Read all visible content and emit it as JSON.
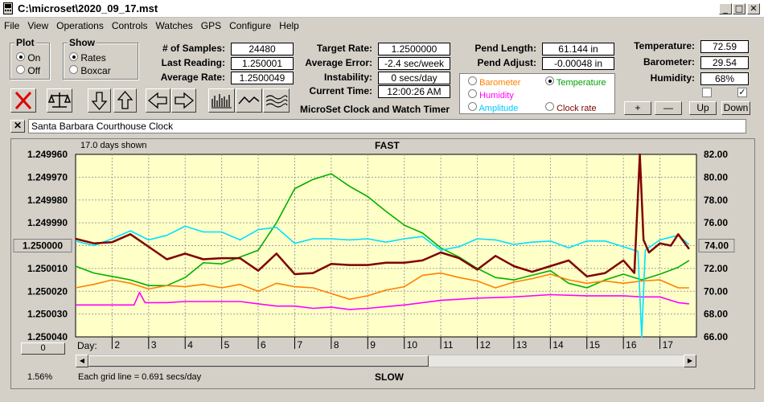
{
  "window": {
    "title": "C:\\microset\\2020_09_17.mst"
  },
  "menu": [
    "File",
    "View",
    "Operations",
    "Controls",
    "Watches",
    "GPS",
    "Configure",
    "Help"
  ],
  "plot_group": {
    "legend": "Plot",
    "on_label": "On",
    "off_label": "Off",
    "selected": "On"
  },
  "show_group": {
    "legend": "Show",
    "rates_label": "Rates",
    "boxcar_label": "Boxcar",
    "selected": "Rates"
  },
  "stats": {
    "samples_label": "# of Samples:",
    "samples": "24480",
    "last_label": "Last Reading:",
    "last": "1.250001",
    "avg_label": "Average Rate:",
    "avg": "1.2500049"
  },
  "rates": {
    "target_label": "Target Rate:",
    "target": "1.2500000",
    "error_label": "Average Error:",
    "error": "-2.4 sec/week",
    "instab_label": "Instability:",
    "instab": "0 secs/day",
    "time_label": "Current Time:",
    "time": "12:00:26 AM"
  },
  "pend": {
    "length_label": "Pend Length:",
    "length": "61.144 in",
    "adjust_label": "Pend Adjust:",
    "adjust": "-0.00048 in"
  },
  "sensor_options": {
    "barometer": "Barometer",
    "temperature": "Temperature",
    "humidity": "Humidity",
    "amplitude": "Amplitude",
    "clock_rate": "Clock rate",
    "selected": "Temperature"
  },
  "env": {
    "temp_label": "Temperature:",
    "temp": "72.59",
    "baro_label": "Barometer:",
    "baro": "29.54",
    "hum_label": "Humidity:",
    "hum": "68%"
  },
  "zoom_buttons": {
    "plus": "+",
    "minus": "—",
    "up": "Up",
    "down": "Down"
  },
  "app_caption": "MicroSet Clock and Watch Timer",
  "clock_name": "Santa Barbara Courthouse Clock",
  "chart_header": {
    "days_shown": "17.0 days shown",
    "fast": "FAST",
    "slow": "SLOW"
  },
  "chart_footer": {
    "zero_button": "0",
    "percent": "1.56%",
    "grid_note": "Each grid line = 0.691 secs/day",
    "day_label": "Day:"
  },
  "colors": {
    "plot_bg": "#ffffc8",
    "rate": "#800000",
    "temperature": "#00b000",
    "barometer": "#ff8000",
    "humidity": "#ff00ff",
    "amplitude": "#00e0ff"
  },
  "chart_data": {
    "type": "line",
    "title": "",
    "xlabel": "Day:",
    "x_ticks": [
      2,
      3,
      4,
      5,
      6,
      7,
      8,
      9,
      10,
      11,
      12,
      13,
      14,
      15,
      16,
      17
    ],
    "xlim": [
      1.0,
      18.0
    ],
    "left_axis": {
      "ticks": [
        "1.249960",
        "1.249970",
        "1.249980",
        "1.249990",
        "1.250000",
        "1.250010",
        "1.250020",
        "1.250030",
        "1.250040"
      ],
      "highlighted": "1.250000",
      "ylim": [
        1.24996,
        1.25004
      ],
      "inverted": true
    },
    "right_axis": {
      "ticks": [
        "82.00",
        "80.00",
        "78.00",
        "76.00",
        "74.00",
        "72.00",
        "70.00",
        "68.00",
        "66.00"
      ],
      "highlighted": "74.00",
      "ylim": [
        66,
        82
      ]
    },
    "grid": true,
    "series": [
      {
        "key": "temperature",
        "points": [
          [
            1,
            72.2
          ],
          [
            1.5,
            71.6
          ],
          [
            2,
            71.3
          ],
          [
            2.5,
            71.0
          ],
          [
            3,
            70.5
          ],
          [
            3.5,
            70.5
          ],
          [
            4,
            71.2
          ],
          [
            4.5,
            72.5
          ],
          [
            5,
            72.4
          ],
          [
            5.5,
            73.0
          ],
          [
            6,
            73.6
          ],
          [
            6.5,
            76.0
          ],
          [
            7,
            79.0
          ],
          [
            7.5,
            79.8
          ],
          [
            8,
            80.3
          ],
          [
            8.5,
            79.2
          ],
          [
            9,
            78.3
          ],
          [
            9.5,
            77.0
          ],
          [
            10,
            75.8
          ],
          [
            10.5,
            75.1
          ],
          [
            11,
            73.8
          ],
          [
            11.5,
            73.0
          ],
          [
            12,
            72.0
          ],
          [
            12.5,
            71.2
          ],
          [
            13,
            71.0
          ],
          [
            13.5,
            71.4
          ],
          [
            14,
            71.8
          ],
          [
            14.5,
            70.7
          ],
          [
            15,
            70.3
          ],
          [
            15.5,
            71.0
          ],
          [
            16,
            71.5
          ],
          [
            16.5,
            71.0
          ],
          [
            17,
            71.5
          ],
          [
            17.5,
            72.1
          ],
          [
            17.8,
            72.7
          ]
        ]
      },
      {
        "key": "barometer",
        "points": [
          [
            1,
            70.3
          ],
          [
            1.5,
            70.6
          ],
          [
            2,
            71.0
          ],
          [
            2.5,
            70.7
          ],
          [
            3,
            70.2
          ],
          [
            3.5,
            70.5
          ],
          [
            4,
            70.4
          ],
          [
            4.5,
            70.6
          ],
          [
            5,
            70.3
          ],
          [
            5.5,
            70.6
          ],
          [
            6,
            70.0
          ],
          [
            6.5,
            70.7
          ],
          [
            7,
            70.4
          ],
          [
            7.5,
            70.3
          ],
          [
            8,
            69.8
          ],
          [
            8.5,
            69.3
          ],
          [
            9,
            69.6
          ],
          [
            9.5,
            70.1
          ],
          [
            10,
            70.4
          ],
          [
            10.5,
            71.4
          ],
          [
            11,
            71.6
          ],
          [
            11.5,
            71.2
          ],
          [
            12,
            70.9
          ],
          [
            12.5,
            70.3
          ],
          [
            13,
            70.8
          ],
          [
            13.5,
            71.1
          ],
          [
            14,
            71.5
          ],
          [
            14.5,
            71.0
          ],
          [
            15,
            70.7
          ],
          [
            15.5,
            70.9
          ],
          [
            16,
            70.7
          ],
          [
            16.5,
            70.9
          ],
          [
            17,
            71.0
          ],
          [
            17.5,
            70.3
          ],
          [
            17.8,
            70.3
          ]
        ]
      },
      {
        "key": "humidity",
        "points": [
          [
            1,
            68.8
          ],
          [
            2,
            68.8
          ],
          [
            2.6,
            68.8
          ],
          [
            2.75,
            69.9
          ],
          [
            2.9,
            69.0
          ],
          [
            3.5,
            69.0
          ],
          [
            4,
            69.1
          ],
          [
            5,
            69.1
          ],
          [
            5.5,
            69.1
          ],
          [
            6,
            68.9
          ],
          [
            6.5,
            68.7
          ],
          [
            7,
            68.7
          ],
          [
            7.5,
            68.5
          ],
          [
            8,
            68.6
          ],
          [
            8.5,
            68.4
          ],
          [
            9,
            68.5
          ],
          [
            10,
            68.8
          ],
          [
            11,
            69.2
          ],
          [
            12,
            69.4
          ],
          [
            13,
            69.5
          ],
          [
            14,
            69.7
          ],
          [
            15,
            69.6
          ],
          [
            16,
            69.6
          ],
          [
            16.5,
            69.5
          ],
          [
            17,
            69.5
          ],
          [
            17.5,
            69.0
          ],
          [
            17.8,
            68.9
          ]
        ]
      },
      {
        "key": "amplitude",
        "points": [
          [
            1,
            74.4
          ],
          [
            1.5,
            74.0
          ],
          [
            2,
            74.6
          ],
          [
            2.5,
            75.3
          ],
          [
            3,
            74.5
          ],
          [
            3.5,
            74.9
          ],
          [
            4,
            75.7
          ],
          [
            4.5,
            75.2
          ],
          [
            5,
            75.2
          ],
          [
            5.5,
            74.5
          ],
          [
            6,
            75.4
          ],
          [
            6.5,
            75.6
          ],
          [
            7,
            74.2
          ],
          [
            7.5,
            74.6
          ],
          [
            8,
            74.6
          ],
          [
            8.5,
            74.5
          ],
          [
            9,
            74.6
          ],
          [
            9.5,
            74.3
          ],
          [
            10,
            74.6
          ],
          [
            10.5,
            74.8
          ],
          [
            11,
            73.6
          ],
          [
            11.5,
            73.9
          ],
          [
            12,
            74.6
          ],
          [
            12.5,
            74.5
          ],
          [
            13,
            74.1
          ],
          [
            13.5,
            74.3
          ],
          [
            14,
            74.4
          ],
          [
            14.5,
            73.8
          ],
          [
            15,
            74.4
          ],
          [
            15.5,
            74.4
          ],
          [
            16,
            73.9
          ],
          [
            16.4,
            73.5
          ],
          [
            16.5,
            66.0
          ],
          [
            16.6,
            73.6
          ],
          [
            17,
            74.5
          ],
          [
            17.5,
            74.9
          ],
          [
            17.8,
            74.1
          ]
        ]
      },
      {
        "key": "rate",
        "points": [
          [
            1,
            74.6
          ],
          [
            1.5,
            74.2
          ],
          [
            2,
            74.3
          ],
          [
            2.5,
            75.0
          ],
          [
            3,
            73.9
          ],
          [
            3.5,
            72.8
          ],
          [
            4,
            73.3
          ],
          [
            4.5,
            72.8
          ],
          [
            5,
            72.9
          ],
          [
            5.5,
            72.9
          ],
          [
            6,
            71.8
          ],
          [
            6.5,
            73.3
          ],
          [
            7,
            71.5
          ],
          [
            7.5,
            71.6
          ],
          [
            8,
            72.4
          ],
          [
            8.5,
            72.3
          ],
          [
            9,
            72.3
          ],
          [
            9.5,
            72.5
          ],
          [
            10,
            72.5
          ],
          [
            10.5,
            72.7
          ],
          [
            11,
            73.4
          ],
          [
            11.5,
            72.9
          ],
          [
            12,
            71.9
          ],
          [
            12.5,
            73.1
          ],
          [
            13,
            72.2
          ],
          [
            13.5,
            71.7
          ],
          [
            14,
            72.2
          ],
          [
            14.5,
            72.7
          ],
          [
            15,
            71.3
          ],
          [
            15.5,
            71.6
          ],
          [
            16,
            72.7
          ],
          [
            16.3,
            71.6
          ],
          [
            16.45,
            82.0
          ],
          [
            16.55,
            74.5
          ],
          [
            16.7,
            73.4
          ],
          [
            17,
            74.2
          ],
          [
            17.3,
            74.0
          ],
          [
            17.5,
            75.0
          ],
          [
            17.8,
            73.7
          ]
        ]
      }
    ]
  }
}
